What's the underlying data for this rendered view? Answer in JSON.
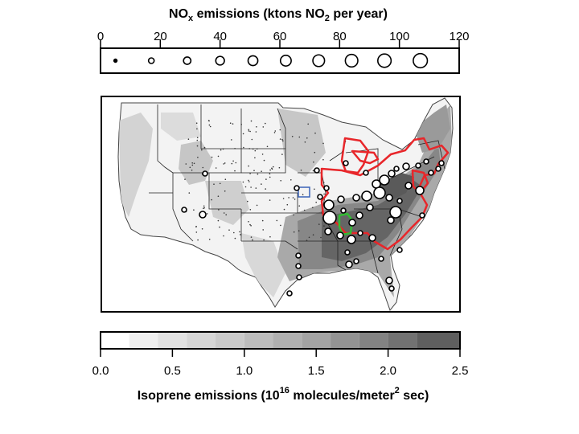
{
  "chart_data": [
    {
      "type": "scatter",
      "title": "NO",
      "title_subscript": "x",
      "title_rest": " emissions (ktons NO",
      "title_subscript_2": "2",
      "title_end": " per year)",
      "xlim": [
        0,
        120
      ],
      "ticks": [
        0,
        20,
        40,
        60,
        80,
        100,
        120
      ],
      "tick_labels": [
        "0",
        "20",
        "40",
        "60",
        "80",
        "100",
        "120"
      ],
      "legend_values": [
        5,
        17,
        29,
        40,
        51,
        62,
        73,
        84,
        95,
        107
      ]
    },
    {
      "type": "heatmap",
      "title": "Isoprene emissions (10",
      "title_superscript": "16",
      "title_rest": " molecules/meter",
      "title_superscript_2": "2",
      "title_end": " sec)",
      "xlim": [
        0,
        2.5
      ],
      "ticks": [
        0.0,
        0.5,
        1.0,
        1.5,
        2.0,
        2.5
      ],
      "tick_labels": [
        "0.0",
        "0.5",
        "1.0",
        "1.5",
        "2.0",
        "2.5"
      ],
      "bins": [
        0.0,
        0.2,
        0.4,
        0.6,
        0.8,
        1.0,
        1.2,
        1.4,
        1.6,
        1.8,
        2.0,
        2.2,
        2.5
      ],
      "colors": [
        "#ffffff",
        "#efefef",
        "#e2e2e2",
        "#d6d6d6",
        "#cacaca",
        "#bdbdbd",
        "#b0b0b0",
        "#a3a3a3",
        "#939393",
        "#838383",
        "#727272",
        "#5f5f5f"
      ]
    }
  ],
  "map": {
    "region_color": "#e8262a",
    "box1_color": "#3a63b8",
    "box2_color": "#33bb33",
    "point_sources": [
      [
        255,
        216,
        3
      ],
      [
        229,
        261,
        3
      ],
      [
        252,
        267,
        4
      ],
      [
        369,
        234,
        3
      ],
      [
        394,
        212,
        3
      ],
      [
        430,
        203,
        3
      ],
      [
        424,
        248,
        4
      ],
      [
        427,
        262,
        3
      ],
      [
        443,
        246,
        4
      ],
      [
        456,
        244,
        6
      ],
      [
        468,
        229,
        5
      ],
      [
        478,
        224,
        6
      ],
      [
        487,
        216,
        4
      ],
      [
        493,
        210,
        3
      ],
      [
        505,
        207,
        4
      ],
      [
        520,
        206,
        3
      ],
      [
        530,
        201,
        3
      ],
      [
        536,
        215,
        3
      ],
      [
        545,
        210,
        3
      ],
      [
        549,
        203,
        3
      ],
      [
        455,
        215,
        3
      ],
      [
        472,
        240,
        7
      ],
      [
        484,
        246,
        4
      ],
      [
        497,
        250,
        3
      ],
      [
        508,
        231,
        4
      ],
      [
        522,
        237,
        5
      ],
      [
        525,
        268,
        3
      ],
      [
        492,
        264,
        7
      ],
      [
        486,
        274,
        4
      ],
      [
        460,
        258,
        4
      ],
      [
        447,
        268,
        4
      ],
      [
        438,
        277,
        4
      ],
      [
        409,
        255,
        6
      ],
      [
        410,
        271,
        8
      ],
      [
        408,
        288,
        4
      ],
      [
        423,
        293,
        4
      ],
      [
        437,
        298,
        5
      ],
      [
        448,
        290,
        3
      ],
      [
        463,
        296,
        4
      ],
      [
        371,
        318,
        3
      ],
      [
        371,
        331,
        3
      ],
      [
        372,
        345,
        3
      ],
      [
        360,
        365,
        3
      ],
      [
        432,
        314,
        3
      ],
      [
        434,
        329,
        4
      ],
      [
        443,
        325,
        3
      ],
      [
        474,
        322,
        3
      ],
      [
        484,
        349,
        4
      ],
      [
        487,
        359,
        3
      ],
      [
        497,
        311,
        3
      ],
      [
        398,
        245,
        3
      ],
      [
        406,
        234,
        3
      ]
    ]
  }
}
